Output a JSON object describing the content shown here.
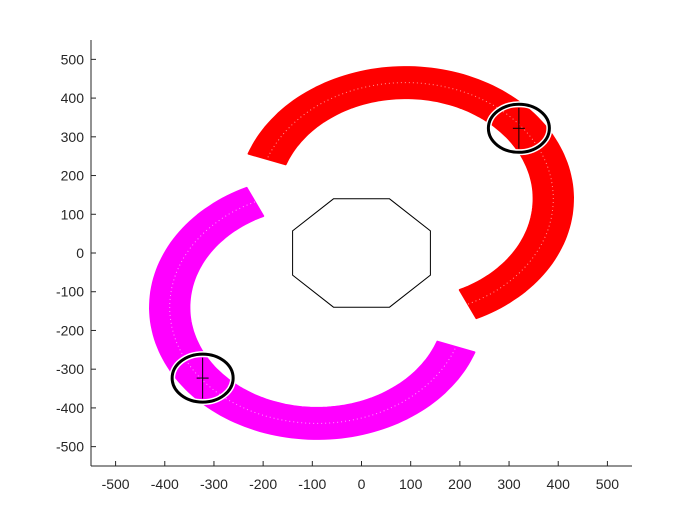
{
  "chart_data": {
    "type": "scatter",
    "title": "",
    "xlabel": "",
    "ylabel": "",
    "xlim": [
      -550,
      550
    ],
    "ylim": [
      -550,
      550
    ],
    "grid": false,
    "xticks": [
      -500,
      -400,
      -300,
      -200,
      -100,
      0,
      100,
      200,
      300,
      400,
      500
    ],
    "yticks": [
      -500,
      -400,
      -300,
      -200,
      -100,
      0,
      100,
      200,
      300,
      400,
      500
    ],
    "series": [
      {
        "marker": "arc-band",
        "color": "#ff0000",
        "center": [
          90,
          140
        ],
        "inner_radius": 260,
        "outer_radius": 340,
        "start_angle_deg": -65,
        "end_angle_deg": 160
      },
      {
        "marker": "arc-band",
        "color": "#ff00ff",
        "center": [
          -90,
          -140
        ],
        "inner_radius": 260,
        "outer_radius": 340,
        "start_angle_deg": 115,
        "end_angle_deg": 340
      },
      {
        "marker": "octagon",
        "color": "#000000",
        "vertices": [
          [
            -57,
            140
          ],
          [
            57,
            140
          ],
          [
            140,
            57
          ],
          [
            140,
            -57
          ],
          [
            57,
            -140
          ],
          [
            -57,
            -140
          ],
          [
            -140,
            -57
          ],
          [
            -140,
            57
          ]
        ]
      },
      {
        "marker": "circle",
        "color": "#000000",
        "center": [
          320,
          322
        ],
        "radius": 62
      },
      {
        "marker": "circle",
        "color": "#000000",
        "center": [
          -323,
          -323
        ],
        "radius": 62
      }
    ]
  }
}
